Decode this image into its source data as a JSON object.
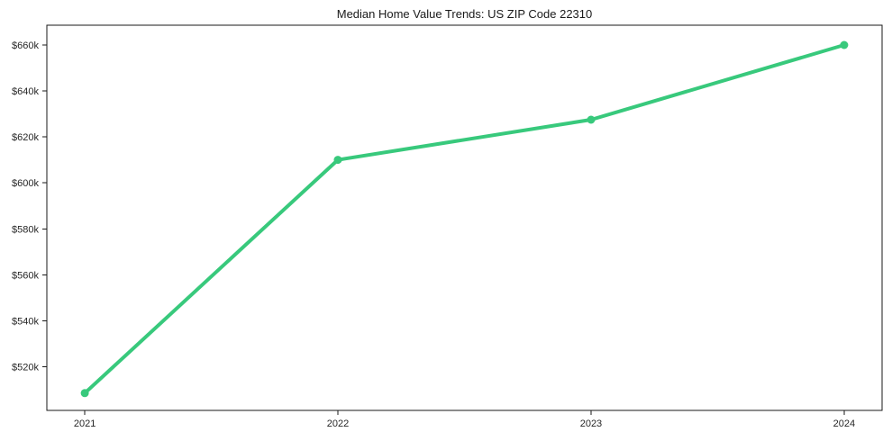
{
  "page": {
    "background": "#ffffff"
  },
  "chart_data": {
    "type": "line",
    "title": "Median Home Value Trends: US ZIP Code 22310",
    "xlabel": "",
    "ylabel": "",
    "x": [
      2021,
      2022,
      2023,
      2024
    ],
    "series": [
      {
        "name": "Median Home Value",
        "values": [
          508500,
          610000,
          627500,
          660000
        ],
        "color": "#38c97c",
        "marker": "circle",
        "line_width": 4,
        "marker_radius": 4.5
      }
    ],
    "xlim": [
      2020.85,
      2024.15
    ],
    "ylim": [
      501000,
      668600
    ],
    "x_ticks": [
      {
        "value": 2021,
        "label": "2021"
      },
      {
        "value": 2022,
        "label": "2022"
      },
      {
        "value": 2023,
        "label": "2023"
      },
      {
        "value": 2024,
        "label": "2024"
      }
    ],
    "y_ticks": [
      {
        "value": 520000,
        "label": "$520k"
      },
      {
        "value": 540000,
        "label": "$540k"
      },
      {
        "value": 560000,
        "label": "$560k"
      },
      {
        "value": 580000,
        "label": "$580k"
      },
      {
        "value": 600000,
        "label": "$600k"
      },
      {
        "value": 620000,
        "label": "$620k"
      },
      {
        "value": 640000,
        "label": "$640k"
      },
      {
        "value": 660000,
        "label": "$660k"
      }
    ],
    "grid": false,
    "legend": false,
    "axis_color": "#1a1a1a",
    "tick_label_color": "#262626",
    "title_color": "#1a1a1a"
  }
}
